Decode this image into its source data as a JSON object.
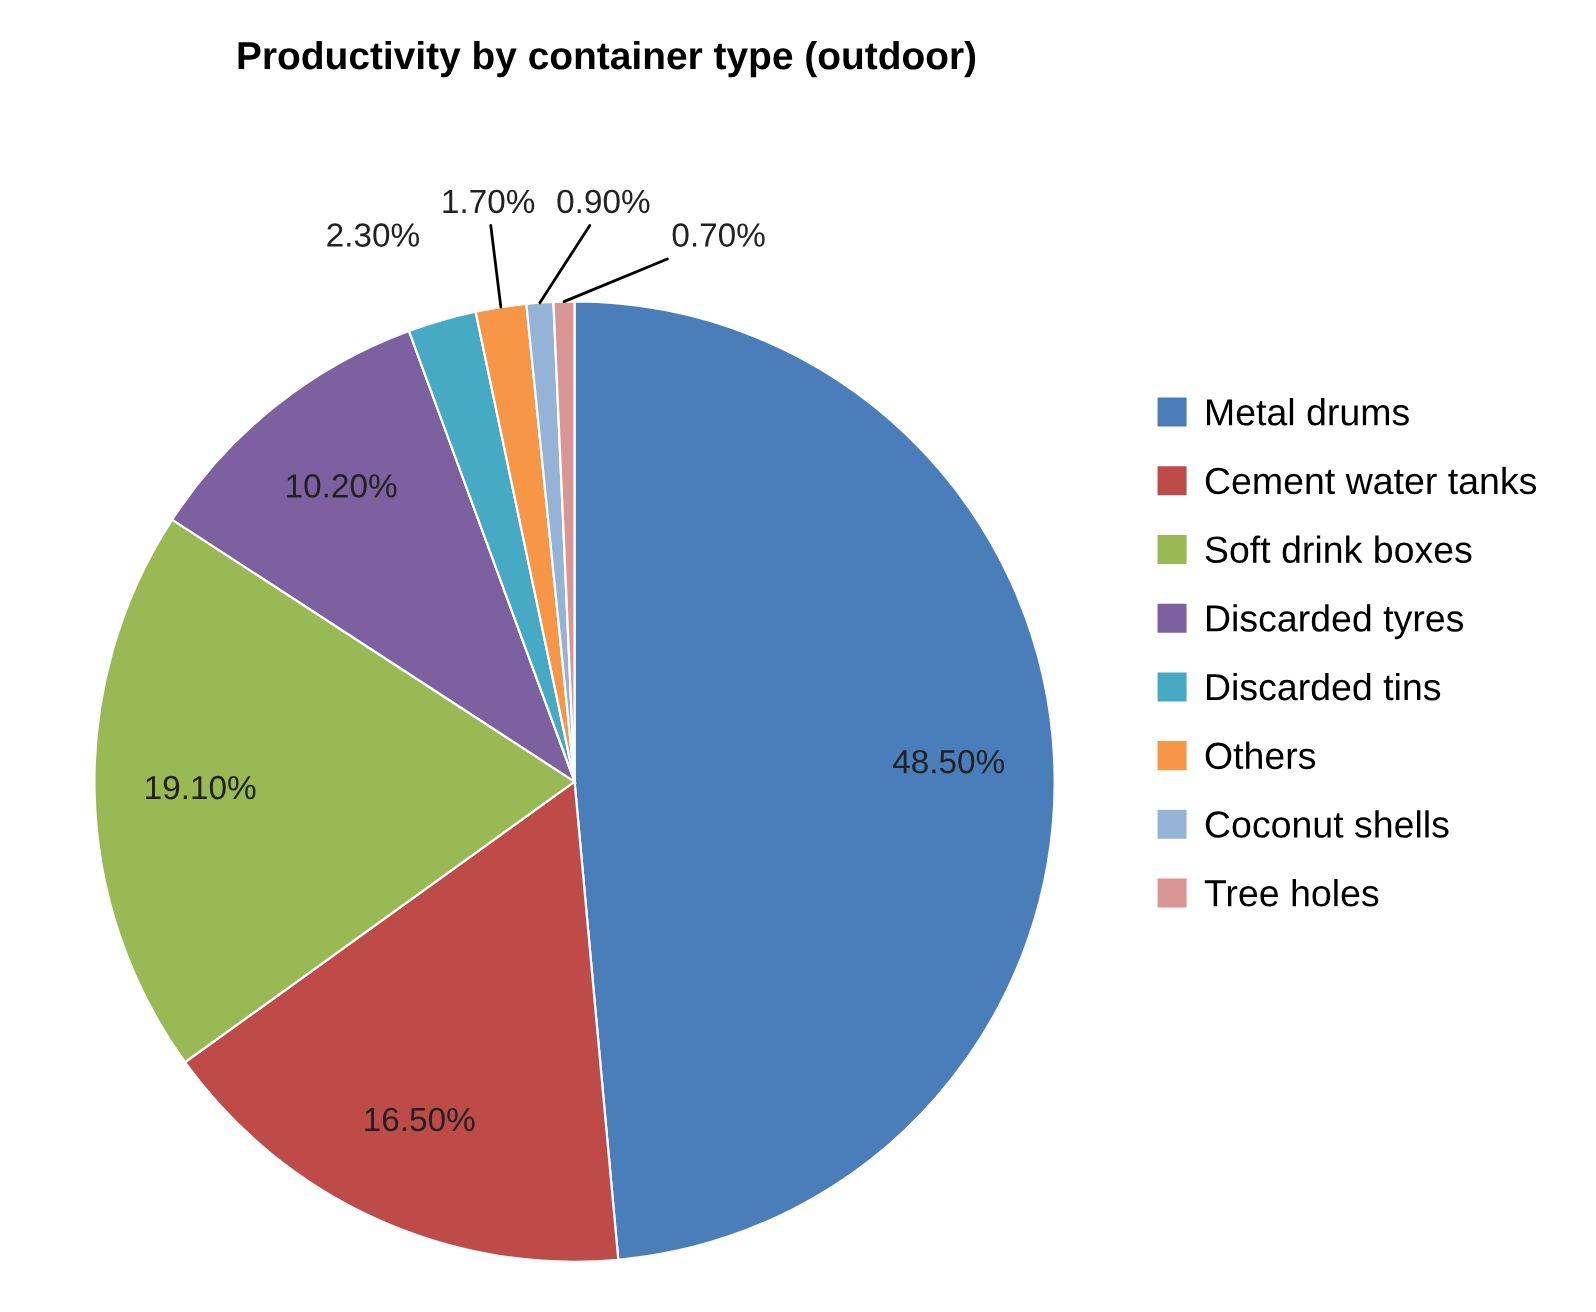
{
  "chart_data": {
    "type": "pie",
    "title": "Productivity by container type (outdoor)",
    "categories": [
      "Metal drums",
      "Cement water tanks",
      "Soft drink boxes",
      "Discarded tyres",
      "Discarded tins",
      "Others",
      "Coconut shells",
      "Tree holes"
    ],
    "values": [
      48.5,
      16.5,
      19.1,
      10.2,
      2.3,
      1.7,
      0.9,
      0.7
    ],
    "value_labels": [
      "48.50%",
      "16.50%",
      "19.10%",
      "10.20%",
      "2.30%",
      "1.70%",
      "0.90%",
      "0.70%"
    ],
    "colors": [
      "#4a7ebb",
      "#be4b48",
      "#98b954",
      "#7d60a0",
      "#46aac5",
      "#f79646",
      "#95b3d7",
      "#d99694"
    ],
    "legend": "right"
  }
}
